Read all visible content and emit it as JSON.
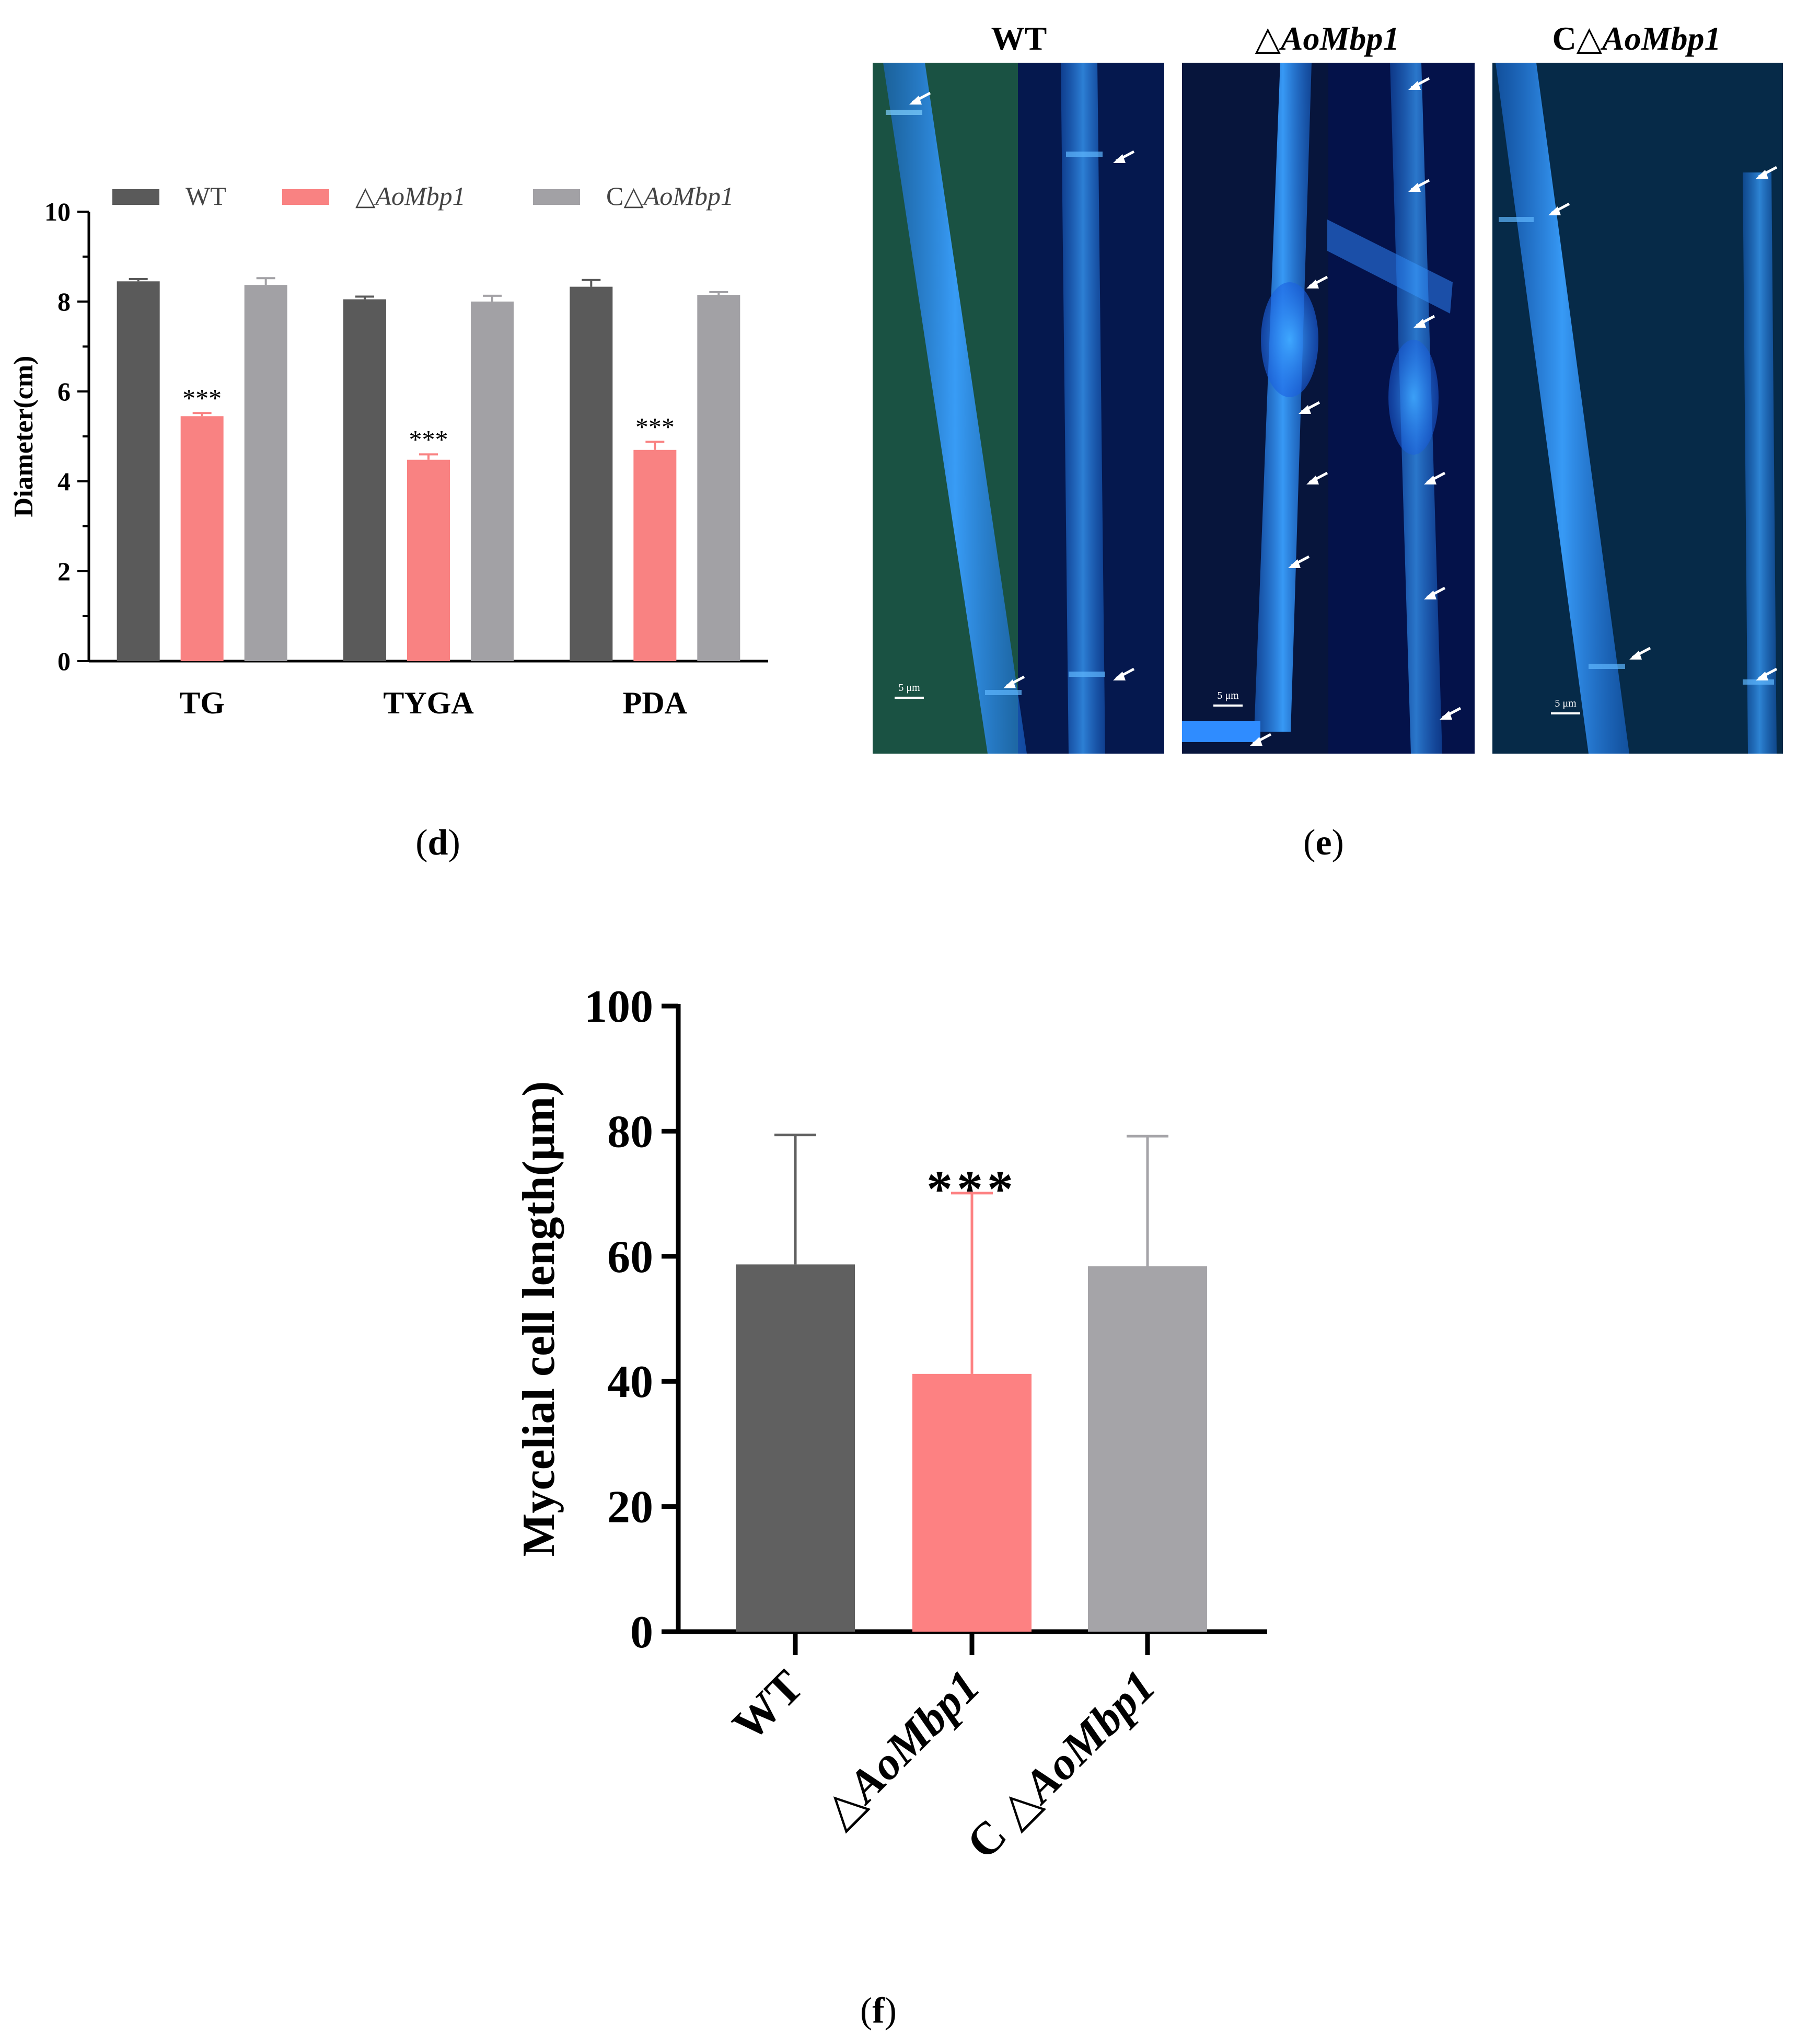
{
  "chart_data": [
    {
      "panel_label": "(d)",
      "type": "bar",
      "ylabel": "Diameter(cm)",
      "ylim": [
        0,
        10
      ],
      "yticks": [
        0,
        2,
        4,
        6,
        8,
        10
      ],
      "categories": [
        "TG",
        "TYGA",
        "PDA"
      ],
      "legend_position": "top",
      "series": [
        {
          "name": "WT",
          "color": "#5a5a5a",
          "values": [
            8.45,
            8.05,
            8.33
          ],
          "errors": [
            0.05,
            0.06,
            0.15
          ]
        },
        {
          "name": "△AoMbp1",
          "name_prefix": "△",
          "name_italic": "AoMbp1",
          "color": "#f98282",
          "values": [
            5.45,
            4.48,
            4.7
          ],
          "errors": [
            0.07,
            0.12,
            0.18
          ]
        },
        {
          "name": "C△AoMbp1",
          "name_prefix": "C△",
          "name_italic": "AoMbp1",
          "color": "#a2a1a5",
          "values": [
            8.37,
            8.0,
            8.15
          ],
          "errors": [
            0.15,
            0.13,
            0.06
          ]
        }
      ],
      "annotations": [
        {
          "category": "TG",
          "series": 1,
          "text": "***"
        },
        {
          "category": "TYGA",
          "series": 1,
          "text": "***"
        },
        {
          "category": "PDA",
          "series": 1,
          "text": "***"
        }
      ]
    },
    {
      "panel_label": "(f)",
      "type": "bar",
      "ylabel": "Mycelial cell length(μm)",
      "ylim": [
        0,
        100
      ],
      "yticks": [
        0,
        20,
        40,
        60,
        80,
        100
      ],
      "categories": [
        {
          "label": "WT",
          "prefix": "",
          "italic": ""
        },
        {
          "label": "△AoMbp1",
          "prefix": "△",
          "italic": "AoMbp1"
        },
        {
          "label": "C △AoMbp1",
          "prefix": "C △",
          "italic": "AoMbp1"
        }
      ],
      "values": [
        58.7,
        41.2,
        58.4
      ],
      "errors": [
        20.7,
        28.9,
        20.8
      ],
      "colors": [
        "#606060",
        "#fd8182",
        "#a5a4a8"
      ],
      "annotations": [
        {
          "category": 1,
          "text": "***"
        }
      ]
    }
  ],
  "micrograph": {
    "panel_label": "(e)",
    "columns": [
      {
        "prefix": "",
        "italic": "",
        "label": "WT"
      },
      {
        "prefix": "△",
        "italic": "AoMbp1",
        "label": "△AoMbp1"
      },
      {
        "prefix": "C△",
        "italic": "AoMbp1",
        "label": "C△AoMbp1"
      }
    ],
    "scale_bar": "5 μm"
  }
}
